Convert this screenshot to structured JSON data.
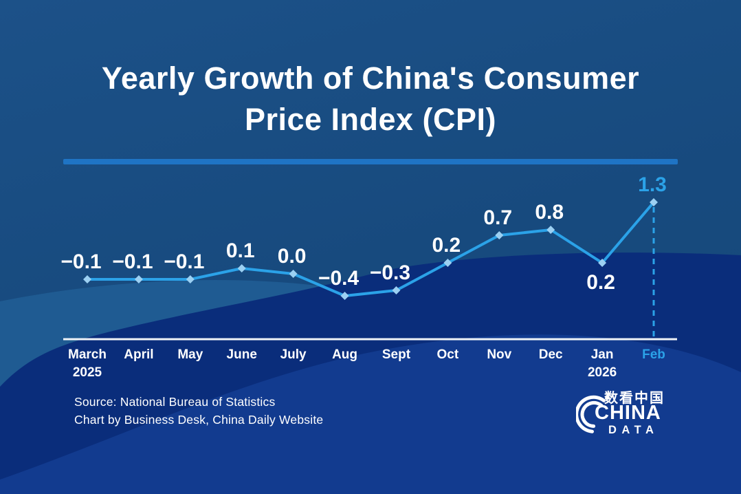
{
  "title": {
    "line1": "Yearly Growth of China's Consumer",
    "line2": "Price Index (CPI)"
  },
  "chart_data": {
    "type": "line",
    "title": "Yearly Growth of China's Consumer Price Index (CPI)",
    "categories": [
      "March",
      "April",
      "May",
      "June",
      "July",
      "Aug",
      "Sept",
      "Oct",
      "Nov",
      "Dec",
      "Jan",
      "Feb"
    ],
    "sublabels": {
      "0": "2025",
      "10": "2026"
    },
    "values": [
      -0.1,
      -0.1,
      -0.1,
      0.1,
      0.0,
      -0.4,
      -0.3,
      0.2,
      0.7,
      0.8,
      0.2,
      1.3
    ],
    "labels": [
      "−0.1",
      "−0.1",
      "−0.1",
      "0.1",
      "0.0",
      "−0.4",
      "−0.3",
      "0.2",
      "0.7",
      "0.8",
      "0.2",
      "1.3"
    ],
    "label_below_indices": [
      10
    ],
    "highlight_index": 11,
    "xlabel": "",
    "ylabel": "",
    "ylim": [
      -0.6,
      1.5
    ],
    "grid": false,
    "legend": "none",
    "line_color": "#2BA2E8",
    "marker_color": "#9CD0F2",
    "highlight_color": "#2BA2E8",
    "label_color": "#FFFFFF"
  },
  "footer": {
    "source_line1": "Source: National Bureau of Statistics",
    "source_line2": "Chart by Business Desk, China Daily Website"
  },
  "logo": {
    "chinese": "数看中国",
    "line1": "CHINA",
    "line2": "DATA"
  },
  "colors": {
    "background": "#174A7E",
    "band_steel": "#1F5B92",
    "wave_navy": "#0A2D7B",
    "wave_royal": "#123B8F",
    "divider": "#1F74C5",
    "axis": "#EFF3F7",
    "text_white": "#FFFFFF",
    "accent_blue": "#2BA2E8"
  }
}
